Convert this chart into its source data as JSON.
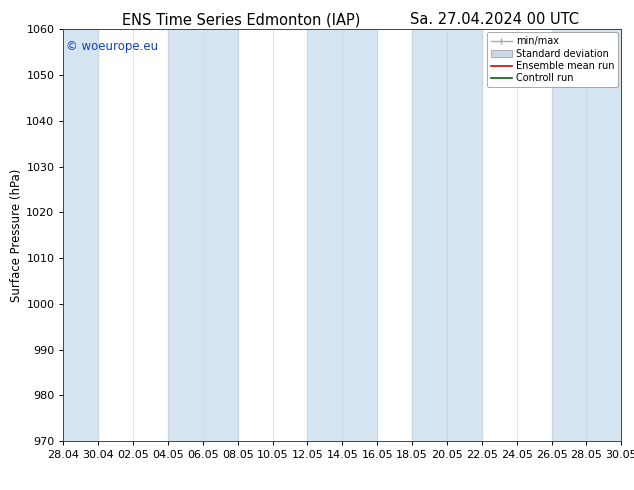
{
  "title_left": "ENS Time Series Edmonton (IAP)",
  "title_right": "Sa. 27.04.2024 00 UTC",
  "ylabel": "Surface Pressure (hPa)",
  "ylim": [
    970,
    1060
  ],
  "yticks": [
    970,
    980,
    990,
    1000,
    1010,
    1020,
    1030,
    1040,
    1050,
    1060
  ],
  "xtick_labels": [
    "28.04",
    "30.04",
    "02.05",
    "04.05",
    "06.05",
    "08.05",
    "10.05",
    "12.05",
    "14.05",
    "16.05",
    "18.05",
    "20.05",
    "22.05",
    "24.05",
    "26.05",
    "28.05",
    "30.05"
  ],
  "watermark": "© woeurope.eu",
  "watermark_color": "#1144bb",
  "legend_items": [
    {
      "label": "min/max",
      "color": "#aaaaaa",
      "lw": 1.0,
      "style": "minmax"
    },
    {
      "label": "Standard deviation",
      "color": "#c8d8e8",
      "lw": 6,
      "style": "std"
    },
    {
      "label": "Ensemble mean run",
      "color": "#dd0000",
      "lw": 1.2,
      "style": "line"
    },
    {
      "label": "Controll run",
      "color": "#006600",
      "lw": 1.2,
      "style": "line"
    }
  ],
  "bg_color": "#ffffff",
  "plot_bg_color": "#ffffff",
  "shade_color": "#d4e4f0",
  "title_fontsize": 10.5,
  "label_fontsize": 8.5,
  "tick_fontsize": 8,
  "watermark_fontsize": 8.5,
  "shade_indices": [
    0,
    3,
    4,
    6,
    7,
    9,
    10,
    12,
    13,
    14,
    16
  ]
}
